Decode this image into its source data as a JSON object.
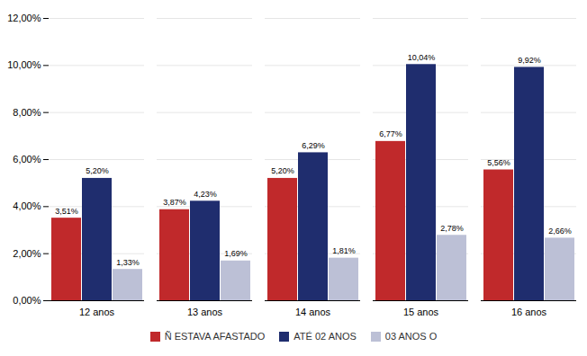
{
  "chart_data": {
    "type": "bar",
    "categories": [
      "12 anos",
      "13 anos",
      "14 anos",
      "15 anos",
      "16 anos"
    ],
    "series": [
      {
        "name": "Ñ ESTAVA AFASTADO",
        "color": "#C0292B",
        "values": [
          3.51,
          3.87,
          5.2,
          6.77,
          5.56
        ],
        "value_labels": [
          "3,51%",
          "3,87%",
          "5,20%",
          "6,77%",
          "5,56%"
        ]
      },
      {
        "name": "ATÉ 02 ANOS",
        "color": "#1F2D6E",
        "values": [
          5.2,
          4.23,
          6.29,
          10.04,
          9.92
        ],
        "value_labels": [
          "5,20%",
          "4,23%",
          "6,29%",
          "10,04%",
          "9,92%"
        ]
      },
      {
        "name": "03 ANOS O",
        "color": "#BCC0D6",
        "values": [
          1.33,
          1.69,
          1.81,
          2.78,
          2.66
        ],
        "value_labels": [
          "1,33%",
          "1,69%",
          "1,81%",
          "2,78%",
          "2,66%"
        ]
      }
    ],
    "ylim": [
      0,
      12.0
    ],
    "yticks": [
      {
        "value": 0,
        "label": "0,00%"
      },
      {
        "value": 2.0,
        "label": "2,00%"
      },
      {
        "value": 4.0,
        "label": "4,00%"
      },
      {
        "value": 6.0,
        "label": "6,00%"
      },
      {
        "value": 8.0,
        "label": "8,00%"
      },
      {
        "value": 10.0,
        "label": "10,00%"
      },
      {
        "value": 12.0,
        "label": "12,00%"
      }
    ],
    "grid": true,
    "legend": "bottom",
    "data_labels": true
  }
}
